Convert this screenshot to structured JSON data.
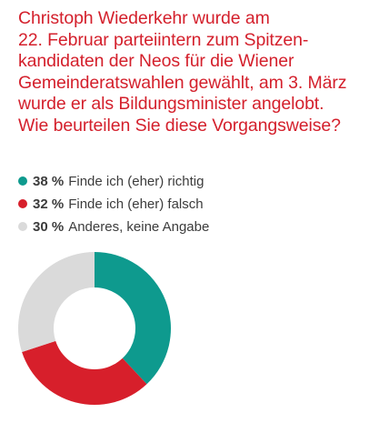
{
  "question_lines": [
    "Christoph Wiederkehr wurde am",
    "22. Februar parteiintern zum Spitzen-",
    "kandidaten der Neos für die Wiener",
    "Gemeinderatswahlen gewählt, am 3. März",
    "wurde er als Bildungsminister angelobt.",
    "Wie beurteilen Sie diese Vorgangsweise?"
  ],
  "legend": [
    {
      "pct": "38 %",
      "label": "Finde ich (eher) richtig",
      "color": "#0e9a8e"
    },
    {
      "pct": "32 %",
      "label": "Finde ich (eher) falsch",
      "color": "#d71f2b"
    },
    {
      "pct": "30 %",
      "label": "Anderes, keine Angabe",
      "color": "#dadada"
    }
  ],
  "chart_data": {
    "type": "pie",
    "donut": true,
    "title": "Christoph Wiederkehr wurde am 22. Februar parteiintern zum Spitzenkandidaten der Neos für die Wiener Gemeinderatswahlen gewählt, am 3. März wurde er als Bildungsminister angelobt. Wie beurteilen Sie diese Vorgangsweise?",
    "categories": [
      "Finde ich (eher) richtig",
      "Finde ich (eher) falsch",
      "Anderes, keine Angabe"
    ],
    "values": [
      38,
      32,
      30
    ],
    "colors": [
      "#0e9a8e",
      "#d71f2b",
      "#dadada"
    ],
    "start": "top",
    "direction": "clockwise"
  }
}
